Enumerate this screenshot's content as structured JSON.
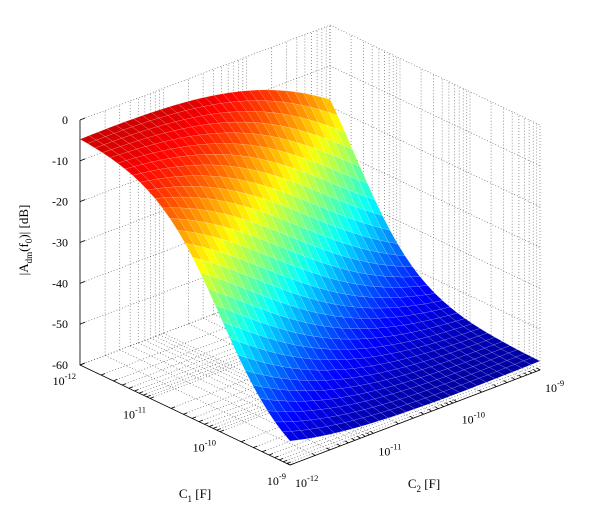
{
  "chart_data": {
    "type": "surface",
    "title": "",
    "xlabel": "C_1 [F]",
    "ylabel": "C_2 [F]",
    "zlabel": "|A_dm(f_0)| [dB]",
    "xlabel_parts": {
      "main": "C",
      "sub": "1",
      "tail": " [F]"
    },
    "ylabel_parts": {
      "main": "C",
      "sub": "2",
      "tail": " [F]"
    },
    "zlabel_parts": {
      "pre": "|A",
      "sub1": "dm",
      "mid": "(f",
      "sub2": "0",
      "post": ")| [dB]"
    },
    "x_scale": "log",
    "y_scale": "log",
    "x_range": [
      "1e-12",
      "1e-9"
    ],
    "y_range": [
      "1e-12",
      "1e-9"
    ],
    "z_range": [
      -60,
      0
    ],
    "x_ticks": [
      {
        "value": "1e-12",
        "base": "10",
        "exp": "-12"
      },
      {
        "value": "1e-11",
        "base": "10",
        "exp": "-11"
      },
      {
        "value": "1e-10",
        "base": "10",
        "exp": "-10"
      },
      {
        "value": "1e-9",
        "base": "10",
        "exp": "-9"
      }
    ],
    "y_ticks": [
      {
        "value": "1e-12",
        "base": "10",
        "exp": "-12"
      },
      {
        "value": "1e-11",
        "base": "10",
        "exp": "-11"
      },
      {
        "value": "1e-10",
        "base": "10",
        "exp": "-10"
      },
      {
        "value": "1e-9",
        "base": "10",
        "exp": "-9"
      }
    ],
    "z_ticks": [
      "0",
      "-10",
      "-20",
      "-30",
      "-40",
      "-50",
      "-60"
    ],
    "grid": true,
    "colormap": "jet",
    "surface_description_values": {
      "note_values": [
        {
          "C1": "1e-12",
          "C2": "1e-12",
          "z": -4
        },
        {
          "C1": "1e-12",
          "C2": "1e-9",
          "z": 0
        },
        {
          "C1": "1e-9",
          "C2": "1e-12",
          "z": -60
        },
        {
          "C1": "1e-9",
          "C2": "1e-9",
          "z": -58
        }
      ]
    }
  }
}
